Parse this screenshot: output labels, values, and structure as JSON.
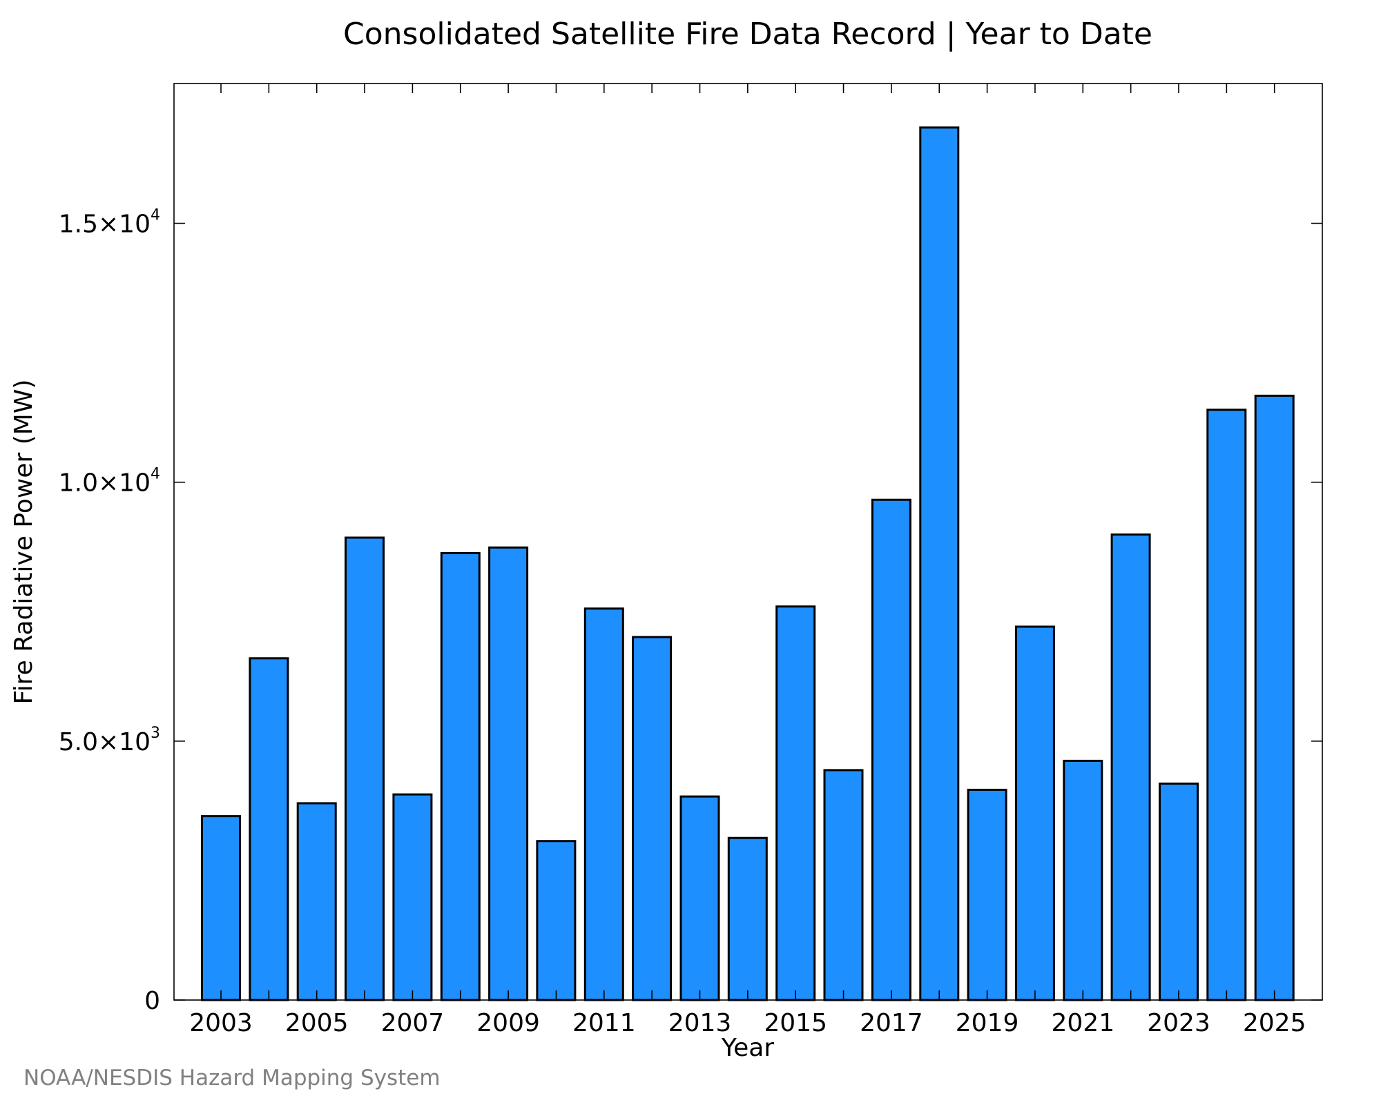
{
  "chart_data": {
    "type": "bar",
    "title": "Consolidated Satellite Fire Data Record | Year to Date",
    "xlabel": "Year",
    "ylabel": "Fire Radiative Power (MW)",
    "credit": "NOAA/NESDIS Hazard Mapping System",
    "categories": [
      "2003",
      "2004",
      "2005",
      "2006",
      "2007",
      "2008",
      "2009",
      "2010",
      "2011",
      "2012",
      "2013",
      "2014",
      "2015",
      "2016",
      "2017",
      "2018",
      "2019",
      "2020",
      "2021",
      "2022",
      "2023",
      "2024",
      "2025"
    ],
    "values": [
      3550,
      6600,
      3800,
      8930,
      3970,
      8630,
      8740,
      3070,
      7560,
      7010,
      3930,
      3130,
      7600,
      4440,
      9660,
      16850,
      4060,
      7210,
      4620,
      8990,
      4180,
      11400,
      11670
    ],
    "x_tick_labels": [
      "2003",
      "2005",
      "2007",
      "2009",
      "2011",
      "2013",
      "2015",
      "2017",
      "2019",
      "2021",
      "2023",
      "2025"
    ],
    "y_ticks": [
      {
        "value": 0,
        "mantissa": "0",
        "exponent": ""
      },
      {
        "value": 5000,
        "mantissa": "5.0×10",
        "exponent": "3"
      },
      {
        "value": 10000,
        "mantissa": "1.0×10",
        "exponent": "4"
      },
      {
        "value": 15000,
        "mantissa": "1.5×10",
        "exponent": "4"
      }
    ],
    "ylim": [
      0,
      17700
    ],
    "grid": false,
    "legend": "none",
    "bar_color": "#1e8fff",
    "edge_color": "#000000",
    "credit_color": "#808080"
  }
}
